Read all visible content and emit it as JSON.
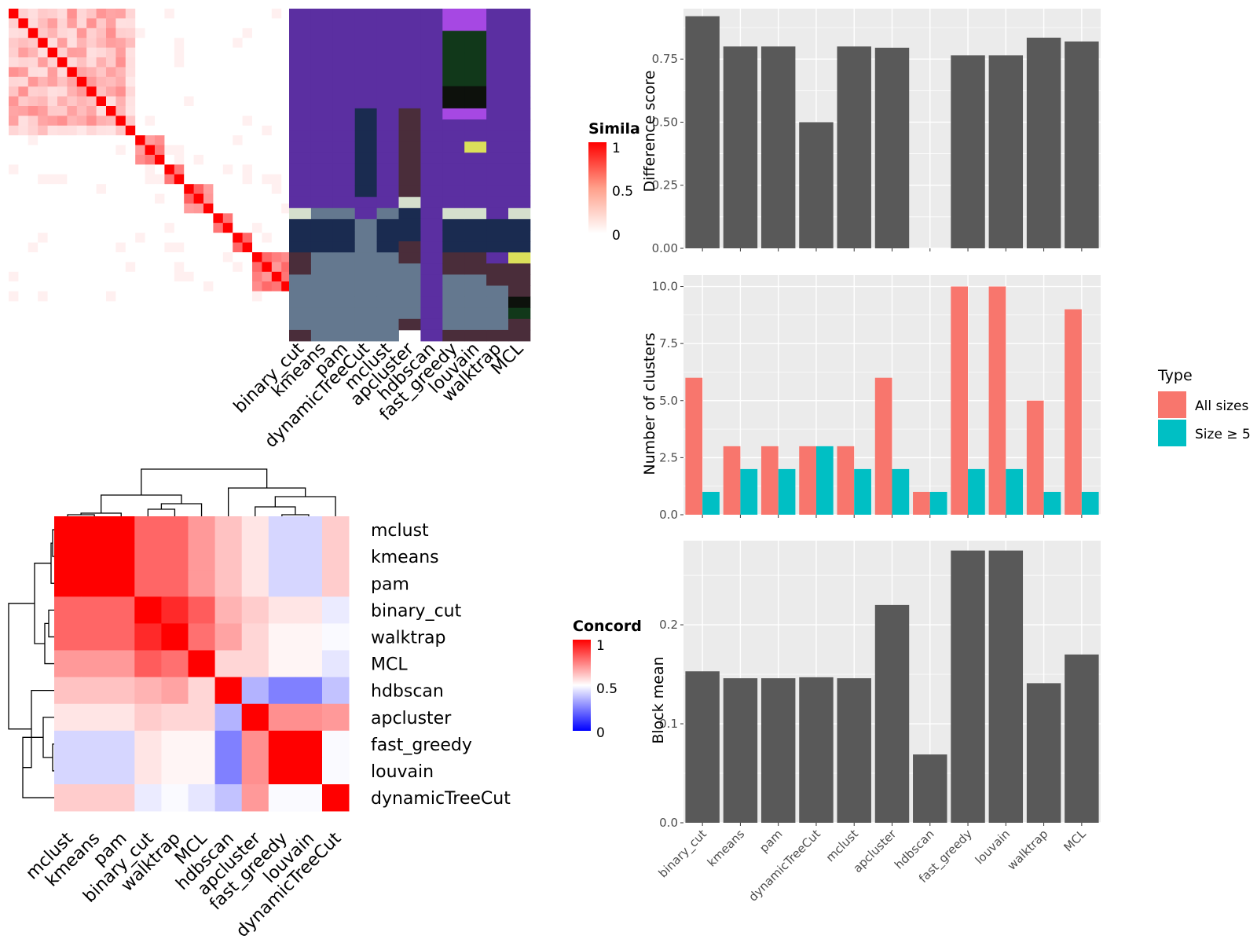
{
  "chart_data": [
    {
      "type": "heatmap",
      "panel": "similarity",
      "n": 30,
      "block_sizes": [
        12,
        1,
        3,
        2,
        3,
        2,
        2,
        4,
        1
      ],
      "legend_title": "Simila",
      "legend_ticks": [
        "1",
        "0.5",
        "0"
      ],
      "legend_values": [
        1,
        0.5,
        0
      ],
      "colors": {
        "high": "#ff0000",
        "low": "#ffffff"
      }
    },
    {
      "type": "heatmap",
      "panel": "cluster_assignments",
      "columns": [
        "binary_cut",
        "kmeans",
        "pam",
        "dynamicTreeCut",
        "mclust",
        "apcluster",
        "hdbscan",
        "fast_greedy",
        "louvain",
        "walktrap",
        "MCL"
      ],
      "n_rows": 30,
      "palette": [
        "#5b2fa1",
        "#1a2b50",
        "#64788f",
        "#4a2d3a",
        "#d5e0cd",
        "#a648e3",
        "#11381a",
        "#0d110c",
        "#dbe05a"
      ]
    },
    {
      "type": "heatmap",
      "panel": "concordance",
      "labels": [
        "mclust",
        "kmeans",
        "pam",
        "binary_cut",
        "walktrap",
        "MCL",
        "hdbscan",
        "apcluster",
        "fast_greedy",
        "louvain",
        "dynamicTreeCut"
      ],
      "values": [
        [
          1.0,
          1.0,
          1.0,
          0.8,
          0.8,
          0.7,
          0.62,
          0.55,
          0.42,
          0.42,
          0.6
        ],
        [
          1.0,
          1.0,
          1.0,
          0.8,
          0.8,
          0.7,
          0.62,
          0.55,
          0.42,
          0.42,
          0.6
        ],
        [
          1.0,
          1.0,
          1.0,
          0.8,
          0.8,
          0.7,
          0.62,
          0.55,
          0.42,
          0.42,
          0.6
        ],
        [
          0.8,
          0.8,
          0.8,
          1.0,
          0.92,
          0.82,
          0.65,
          0.6,
          0.55,
          0.55,
          0.46
        ],
        [
          0.8,
          0.8,
          0.8,
          0.92,
          1.0,
          0.78,
          0.68,
          0.58,
          0.52,
          0.52,
          0.49
        ],
        [
          0.7,
          0.7,
          0.7,
          0.82,
          0.78,
          1.0,
          0.58,
          0.58,
          0.52,
          0.52,
          0.45
        ],
        [
          0.62,
          0.62,
          0.62,
          0.65,
          0.68,
          0.58,
          1.0,
          0.35,
          0.25,
          0.25,
          0.38
        ],
        [
          0.55,
          0.55,
          0.55,
          0.6,
          0.58,
          0.58,
          0.35,
          1.0,
          0.72,
          0.72,
          0.7
        ],
        [
          0.42,
          0.42,
          0.42,
          0.55,
          0.52,
          0.52,
          0.25,
          0.72,
          1.0,
          1.0,
          0.49
        ],
        [
          0.42,
          0.42,
          0.42,
          0.55,
          0.52,
          0.52,
          0.25,
          0.72,
          1.0,
          1.0,
          0.49
        ],
        [
          0.6,
          0.6,
          0.6,
          0.46,
          0.49,
          0.45,
          0.38,
          0.7,
          0.49,
          0.49,
          1.0
        ]
      ],
      "legend_title": "Concord",
      "legend_ticks": [
        "1",
        "0.5",
        "0"
      ],
      "legend_values": [
        1,
        0.5,
        0
      ],
      "colors": {
        "high": "#ff0000",
        "mid": "#ffffff",
        "low": "#0000ff"
      }
    },
    {
      "type": "bar",
      "panel": "difference",
      "categories": [
        "binary_cut",
        "kmeans",
        "pam",
        "dynamicTreeCut",
        "mclust",
        "apcluster",
        "hdbscan",
        "fast_greedy",
        "louvain",
        "walktrap",
        "MCL"
      ],
      "values": [
        0.92,
        0.8,
        0.8,
        0.5,
        0.8,
        0.795,
        null,
        0.765,
        0.765,
        0.835,
        0.82
      ],
      "ylabel": "Difference score",
      "yticks": [
        "0.00",
        "0.25",
        "0.50",
        "0.75"
      ],
      "ylim": [
        0,
        0.95
      ],
      "color": "#595959"
    },
    {
      "type": "bar",
      "panel": "n_clusters",
      "categories": [
        "binary_cut",
        "kmeans",
        "pam",
        "dynamicTreeCut",
        "mclust",
        "apcluster",
        "hdbscan",
        "fast_greedy",
        "louvain",
        "walktrap",
        "MCL"
      ],
      "series": [
        {
          "name": "All sizes",
          "values": [
            6,
            3,
            3,
            3,
            3,
            6,
            1,
            10,
            10,
            5,
            9
          ],
          "color": "#f8766d"
        },
        {
          "name": "Size ≥ 5",
          "values": [
            1,
            2,
            2,
            3,
            2,
            2,
            1,
            2,
            2,
            1,
            1
          ],
          "color": "#00bfc4"
        }
      ],
      "ylabel": "Number of clusters",
      "yticks": [
        "0.0",
        "2.5",
        "5.0",
        "7.5",
        "10.0"
      ],
      "ylim": [
        0,
        10.5
      ],
      "legend_title": "Type",
      "legend_position": "right"
    },
    {
      "type": "bar",
      "panel": "block_mean",
      "categories": [
        "binary_cut",
        "kmeans",
        "pam",
        "dynamicTreeCut",
        "mclust",
        "apcluster",
        "hdbscan",
        "fast_greedy",
        "louvain",
        "walktrap",
        "MCL"
      ],
      "values": [
        0.153,
        0.146,
        0.146,
        0.147,
        0.146,
        0.22,
        0.069,
        0.275,
        0.275,
        0.141,
        0.17
      ],
      "ylabel": "Block mean",
      "yticks": [
        "0.0",
        "0.1",
        "0.2"
      ],
      "ylim": [
        0,
        0.285
      ],
      "color": "#595959"
    }
  ]
}
